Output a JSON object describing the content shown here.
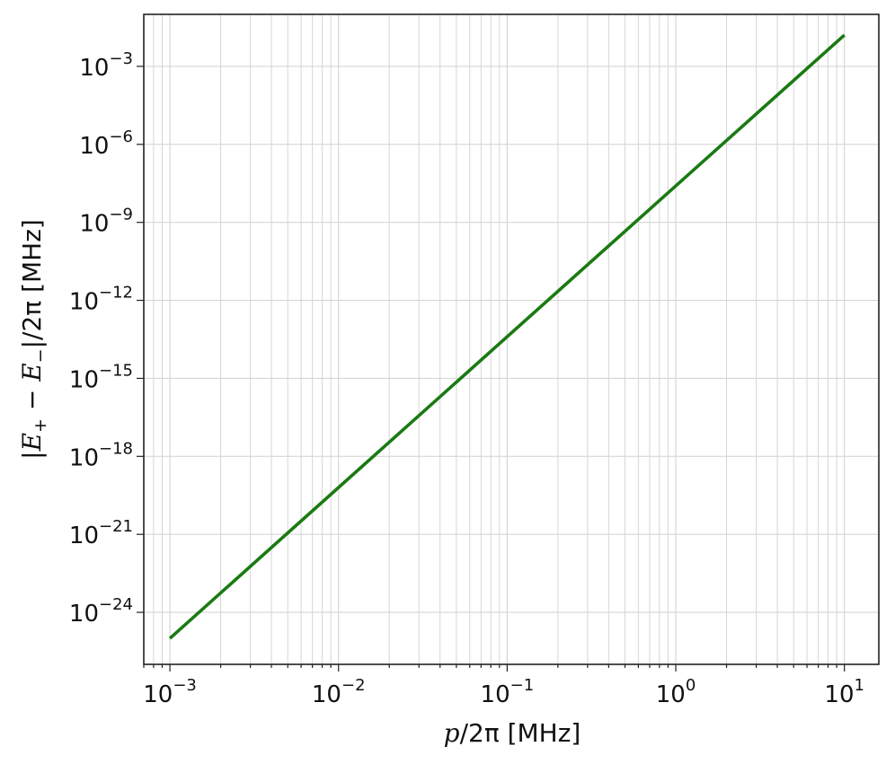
{
  "chart_data": {
    "type": "line",
    "xscale": "log",
    "yscale": "log",
    "xlim": [
      0.0007,
      16
    ],
    "ylim": [
      1e-26,
      0.1
    ],
    "grid": true,
    "grid_minor": true,
    "xlabel": {
      "var": "p",
      "rest": "/2π [MHz]"
    },
    "ylabel": {
      "bar_left": "|",
      "var1": "E",
      "sub1": "+",
      "minus": " − ",
      "var2": "E",
      "sub2": "−",
      "rest": "|/2π [MHz]"
    },
    "x_ticks": [
      {
        "value": 0.001,
        "base": "10",
        "exp": "−3"
      },
      {
        "value": 0.01,
        "base": "10",
        "exp": "−2"
      },
      {
        "value": 0.1,
        "base": "10",
        "exp": "−1"
      },
      {
        "value": 1,
        "base": "10",
        "exp": "0"
      },
      {
        "value": 10,
        "base": "10",
        "exp": "1"
      }
    ],
    "y_ticks": [
      {
        "value": 0.001,
        "base": "10",
        "exp": "−3"
      },
      {
        "value": 1e-06,
        "base": "10",
        "exp": "−6"
      },
      {
        "value": 1e-09,
        "base": "10",
        "exp": "−9"
      },
      {
        "value": 1e-12,
        "base": "10",
        "exp": "−12"
      },
      {
        "value": 1e-15,
        "base": "10",
        "exp": "−15"
      },
      {
        "value": 1e-18,
        "base": "10",
        "exp": "−18"
      },
      {
        "value": 1e-21,
        "base": "10",
        "exp": "−21"
      },
      {
        "value": 1e-24,
        "base": "10",
        "exp": "−24"
      }
    ],
    "series": [
      {
        "color": "#1a7a12",
        "x": [
          0.001,
          10
        ],
        "y": [
          1e-25,
          0.016
        ]
      }
    ]
  }
}
